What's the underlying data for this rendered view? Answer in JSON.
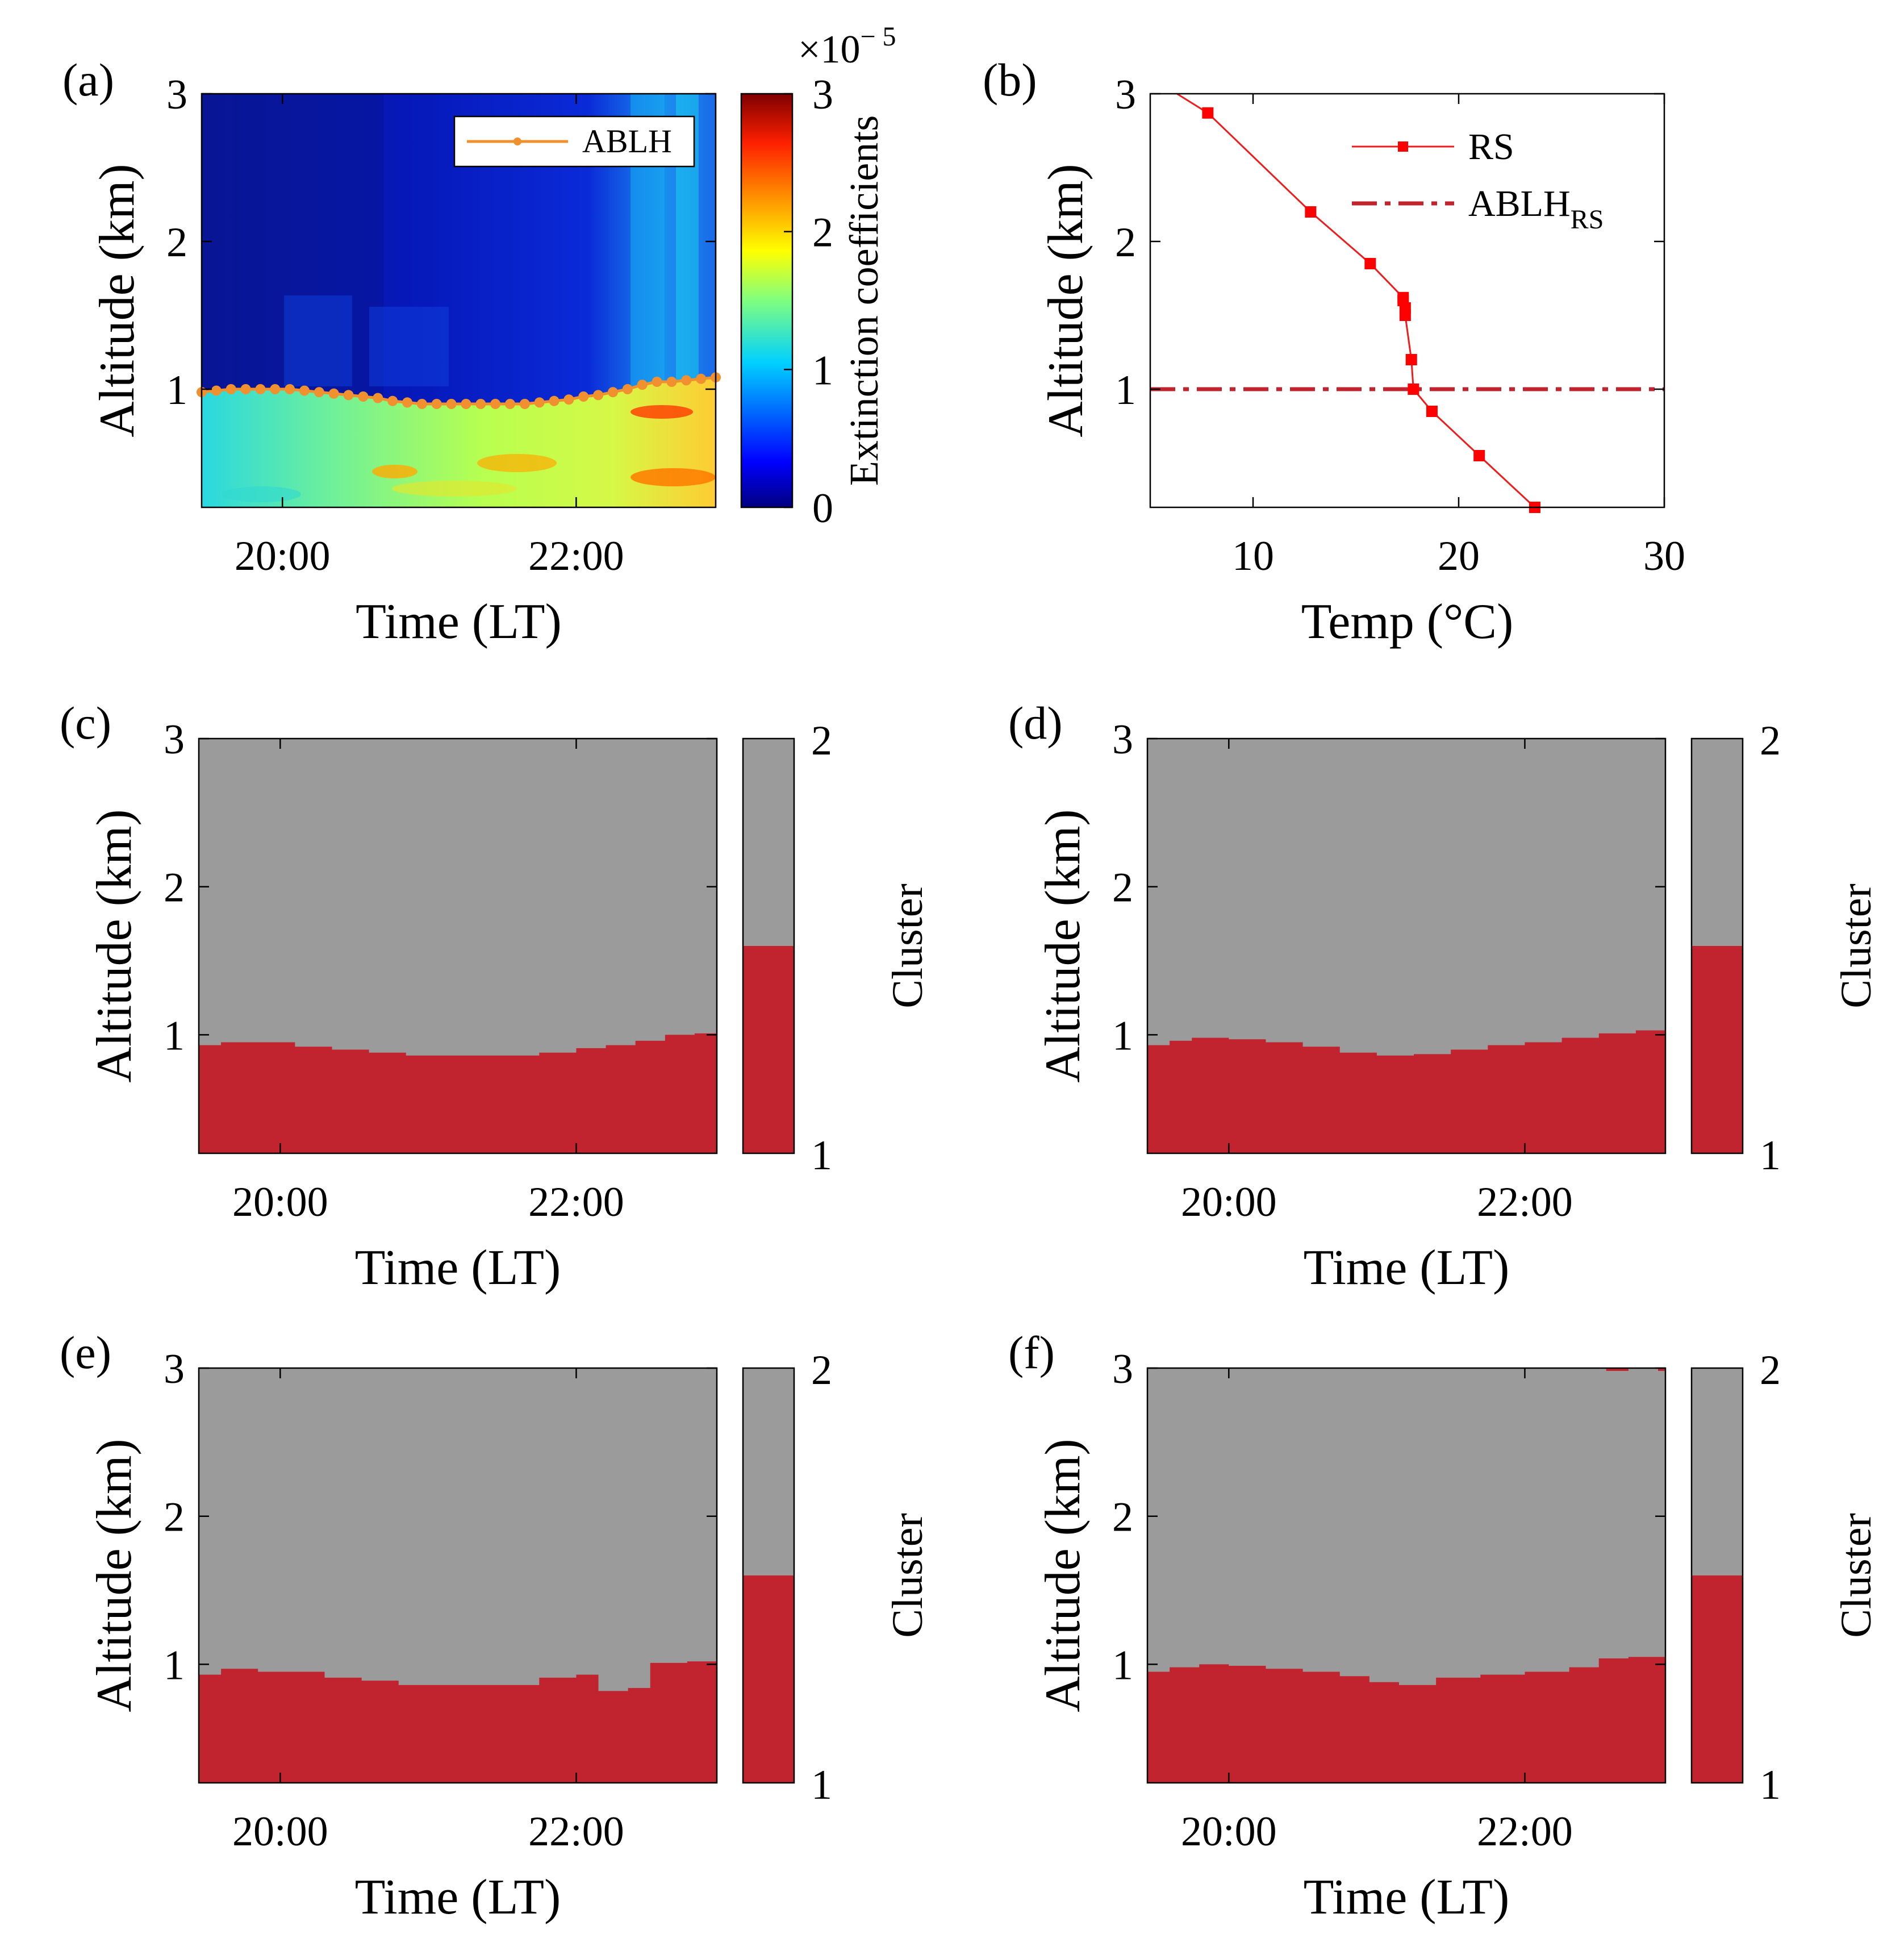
{
  "colors": {
    "cluster_low": "#c1242f",
    "cluster_high": "#9b9b9b",
    "ablh_line": "#f0902f",
    "rs_line": "#ee1c1c",
    "rs_marker": "#ff0000",
    "ablh_rs_line": "#c1242f"
  },
  "chart_data": [
    {
      "panel": "(a)",
      "type": "heatmap",
      "xlabel": "Time (LT)",
      "ylabel": "Altitude (km)",
      "x_tick_labels": [
        "20:00",
        "22:00"
      ],
      "x_ticks_hours": [
        20,
        22
      ],
      "xlim_hours": [
        19.45,
        22.95
      ],
      "ylim": [
        0.2,
        3
      ],
      "y_ticks": [
        1,
        2,
        3
      ],
      "colorbar": {
        "label": "Extinction coefficients",
        "exponent_label": "×10",
        "exponent": "− 5",
        "ticks": [
          0,
          1,
          2,
          3
        ],
        "range": [
          0,
          3
        ],
        "colormap": "jet"
      },
      "legend": [
        "ABLH"
      ],
      "legend_position": "top-right",
      "ablh_series": {
        "name": "ABLH",
        "time_hours": [
          19.45,
          19.55,
          19.65,
          19.75,
          19.85,
          19.95,
          20.05,
          20.15,
          20.25,
          20.35,
          20.45,
          20.55,
          20.65,
          20.75,
          20.85,
          20.95,
          21.05,
          21.15,
          21.25,
          21.35,
          21.45,
          21.55,
          21.65,
          21.75,
          21.85,
          21.95,
          22.05,
          22.15,
          22.25,
          22.35,
          22.45,
          22.55,
          22.65,
          22.75,
          22.85,
          22.95
        ],
        "altitude_km": [
          0.98,
          0.99,
          1.0,
          1.0,
          1.0,
          1.0,
          1.0,
          0.99,
          0.98,
          0.97,
          0.96,
          0.95,
          0.94,
          0.92,
          0.91,
          0.9,
          0.9,
          0.9,
          0.9,
          0.9,
          0.9,
          0.9,
          0.9,
          0.91,
          0.92,
          0.93,
          0.95,
          0.96,
          0.98,
          1.0,
          1.03,
          1.05,
          1.05,
          1.06,
          1.07,
          1.08
        ]
      }
    },
    {
      "panel": "(b)",
      "type": "line",
      "xlabel": "Temp (°C)",
      "ylabel": "Altitude (km)",
      "xlim": [
        5,
        30
      ],
      "x_ticks": [
        10,
        20,
        30
      ],
      "ylim": [
        0.2,
        3
      ],
      "y_ticks": [
        1,
        2,
        3
      ],
      "legend_position": "top-right",
      "series": [
        {
          "name": "RS",
          "temp_c": [
            23.7,
            21.0,
            18.7,
            17.8,
            17.7,
            17.4,
            17.4,
            17.3,
            17.3,
            15.7,
            12.8,
            7.8,
            6.3
          ],
          "altitude_km": [
            0.2,
            0.55,
            0.85,
            1.0,
            1.2,
            1.5,
            1.55,
            1.6,
            1.62,
            1.85,
            2.2,
            2.87,
            3.0
          ]
        },
        {
          "name": "ABLH",
          "name_subscript": "RS",
          "altitude_km": 1.0
        }
      ]
    },
    {
      "panel": "(c)",
      "type": "heatmap",
      "xlabel": "Time (LT)",
      "ylabel": "Altitude (km)",
      "x_tick_labels": [
        "20:00",
        "22:00"
      ],
      "x_ticks_hours": [
        20,
        22
      ],
      "xlim_hours": [
        19.45,
        22.95
      ],
      "ylim": [
        0.2,
        3
      ],
      "y_ticks": [
        1,
        2,
        3
      ],
      "colorbar": {
        "label": "Cluster",
        "ticks": [
          1,
          2
        ],
        "split_fraction": 0.5
      },
      "boundary_time_hours": [
        19.45,
        19.6,
        19.95,
        20.1,
        20.35,
        20.6,
        20.85,
        21.05,
        21.25,
        21.5,
        21.75,
        22.0,
        22.2,
        22.4,
        22.6,
        22.8,
        22.95
      ],
      "boundary_altitude_km": [
        0.93,
        0.95,
        0.95,
        0.92,
        0.9,
        0.88,
        0.86,
        0.86,
        0.86,
        0.86,
        0.88,
        0.91,
        0.93,
        0.96,
        1.0,
        1.01,
        1.03
      ]
    },
    {
      "panel": "(d)",
      "type": "heatmap",
      "xlabel": "Time (LT)",
      "ylabel": "Altitude (km)",
      "x_tick_labels": [
        "20:00",
        "22:00"
      ],
      "x_ticks_hours": [
        20,
        22
      ],
      "xlim_hours": [
        19.45,
        22.95
      ],
      "ylim": [
        0.2,
        3
      ],
      "y_ticks": [
        1,
        2,
        3
      ],
      "colorbar": {
        "label": "Cluster",
        "ticks": [
          1,
          2
        ],
        "split_fraction": 0.5
      },
      "boundary_time_hours": [
        19.45,
        19.6,
        19.75,
        20.0,
        20.25,
        20.5,
        20.75,
        21.0,
        21.25,
        21.5,
        21.75,
        22.0,
        22.25,
        22.5,
        22.75,
        22.95
      ],
      "boundary_altitude_km": [
        0.93,
        0.96,
        0.98,
        0.97,
        0.95,
        0.92,
        0.88,
        0.86,
        0.87,
        0.9,
        0.93,
        0.95,
        0.98,
        1.01,
        1.03,
        1.05
      ]
    },
    {
      "panel": "(e)",
      "type": "heatmap",
      "xlabel": "Time (LT)",
      "ylabel": "Altitude (km)",
      "x_tick_labels": [
        "20:00",
        "22:00"
      ],
      "x_ticks_hours": [
        20,
        22
      ],
      "xlim_hours": [
        19.45,
        22.95
      ],
      "ylim": [
        0.2,
        3
      ],
      "y_ticks": [
        1,
        2,
        3
      ],
      "colorbar": {
        "label": "Cluster",
        "ticks": [
          1,
          2
        ],
        "split_fraction": 0.5
      },
      "boundary_time_hours": [
        19.45,
        19.6,
        19.85,
        20.05,
        20.3,
        20.55,
        20.8,
        21.1,
        21.45,
        21.75,
        22.0,
        22.15,
        22.35,
        22.5,
        22.75,
        22.95
      ],
      "boundary_altitude_km": [
        0.93,
        0.97,
        0.95,
        0.95,
        0.91,
        0.89,
        0.86,
        0.86,
        0.86,
        0.91,
        0.93,
        0.82,
        0.84,
        1.01,
        1.02,
        1.04
      ]
    },
    {
      "panel": "(f)",
      "type": "heatmap",
      "xlabel": "Time (LT)",
      "ylabel": "Altitude (km)",
      "x_tick_labels": [
        "20:00",
        "22:00"
      ],
      "x_ticks_hours": [
        20,
        22
      ],
      "xlim_hours": [
        19.45,
        22.95
      ],
      "ylim": [
        0.2,
        3
      ],
      "y_ticks": [
        1,
        2,
        3
      ],
      "colorbar": {
        "label": "Cluster",
        "ticks": [
          1,
          2
        ],
        "split_fraction": 0.5
      },
      "boundary_time_hours": [
        19.45,
        19.6,
        19.8,
        20.0,
        20.25,
        20.5,
        20.75,
        20.95,
        21.15,
        21.4,
        21.7,
        22.0,
        22.3,
        22.5,
        22.7,
        22.95
      ],
      "boundary_altitude_km": [
        0.95,
        0.98,
        1.0,
        0.99,
        0.97,
        0.95,
        0.92,
        0.88,
        0.86,
        0.91,
        0.93,
        0.95,
        0.98,
        1.04,
        1.05,
        1.06
      ],
      "top_artifacts_time_hours": [
        [
          22.55,
          22.7
        ],
        [
          22.9,
          22.95
        ]
      ]
    }
  ]
}
